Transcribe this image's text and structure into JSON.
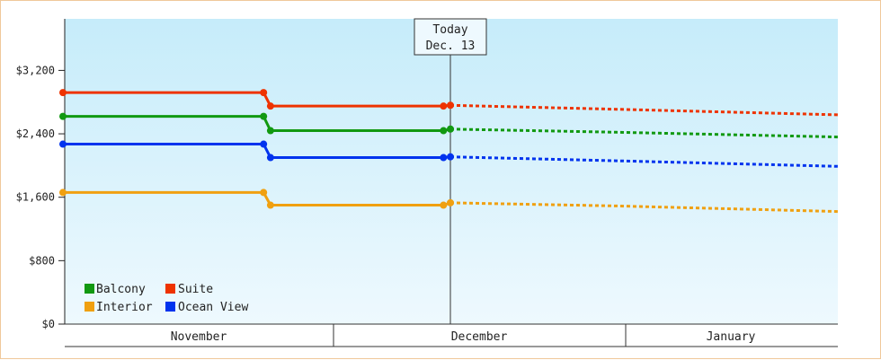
{
  "chart_data": {
    "type": "line",
    "y_ticks": [
      "$0",
      "$800",
      "$1,600",
      "$2,400",
      "$3,200"
    ],
    "ylim": [
      0,
      3850
    ],
    "months": [
      "November",
      "December",
      "January"
    ],
    "today_marker": {
      "line1": "Today",
      "line2": "Dec. 13"
    },
    "legend": [
      {
        "key": "balcony",
        "label": "Balcony"
      },
      {
        "key": "suite",
        "label": "Suite"
      },
      {
        "key": "interior",
        "label": "Interior"
      },
      {
        "key": "ocean",
        "label": "Ocean View"
      }
    ],
    "series": [
      {
        "name": "Suite",
        "key": "suite",
        "color": "#ee3300",
        "actual": [
          [
            "2024-10-18",
            2920
          ],
          [
            "2024-11-16",
            2920
          ],
          [
            "2024-11-17",
            2750
          ],
          [
            "2024-12-12",
            2750
          ],
          [
            "2024-12-13",
            2760
          ]
        ],
        "forecast": [
          [
            "2024-12-13",
            2760
          ],
          [
            "2024-12-31",
            2710
          ],
          [
            "2025-01-24",
            2640
          ]
        ]
      },
      {
        "name": "Balcony",
        "key": "balcony",
        "color": "#119911",
        "actual": [
          [
            "2024-10-18",
            2620
          ],
          [
            "2024-11-16",
            2620
          ],
          [
            "2024-11-17",
            2440
          ],
          [
            "2024-12-12",
            2440
          ],
          [
            "2024-12-13",
            2460
          ]
        ],
        "forecast": [
          [
            "2024-12-13",
            2460
          ],
          [
            "2024-12-31",
            2420
          ],
          [
            "2025-01-24",
            2360
          ]
        ]
      },
      {
        "name": "Ocean View",
        "key": "ocean",
        "color": "#0033ee",
        "actual": [
          [
            "2024-10-18",
            2270
          ],
          [
            "2024-11-16",
            2270
          ],
          [
            "2024-11-17",
            2100
          ],
          [
            "2024-12-12",
            2100
          ],
          [
            "2024-12-13",
            2110
          ]
        ],
        "forecast": [
          [
            "2024-12-13",
            2110
          ],
          [
            "2024-12-31",
            2060
          ],
          [
            "2025-01-24",
            1990
          ]
        ]
      },
      {
        "name": "Interior",
        "key": "interior",
        "color": "#f0a010",
        "actual": [
          [
            "2024-10-18",
            1660
          ],
          [
            "2024-11-16",
            1660
          ],
          [
            "2024-11-17",
            1500
          ],
          [
            "2024-12-12",
            1500
          ],
          [
            "2024-12-13",
            1530
          ]
        ],
        "forecast": [
          [
            "2024-12-13",
            1530
          ],
          [
            "2024-12-31",
            1490
          ],
          [
            "2025-01-24",
            1420
          ]
        ]
      }
    ]
  }
}
